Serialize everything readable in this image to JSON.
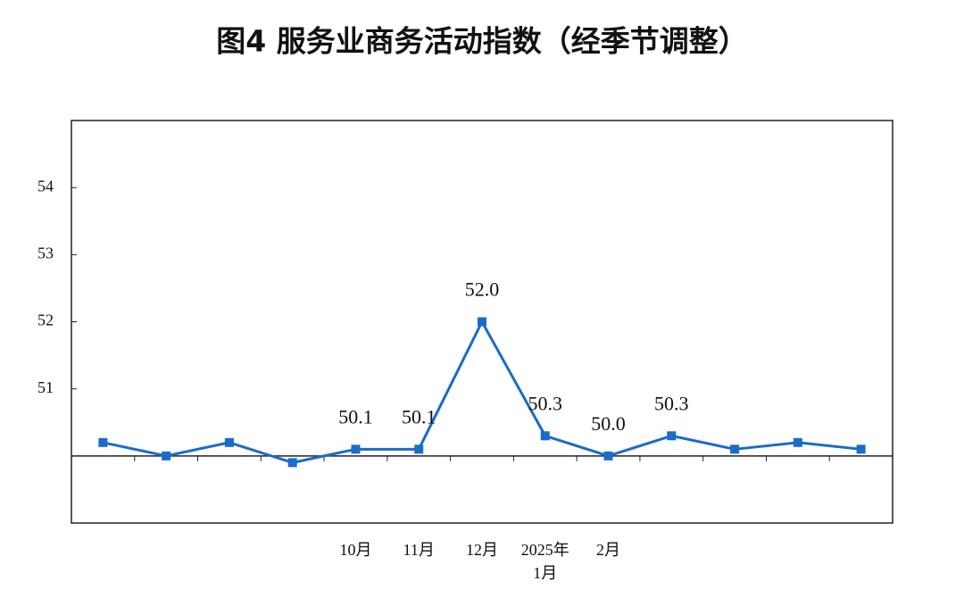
{
  "chart_data": {
    "type": "line",
    "title": "图4  服务业商务活动指数（经季节调整）",
    "categories": [
      null,
      null,
      null,
      null,
      "10月",
      "11月",
      "12月",
      "2025年\n1月",
      "2月",
      null,
      null,
      null,
      null
    ],
    "series": [
      {
        "name": null,
        "color": "#1a6cc8",
        "values": [
          50.2,
          50.0,
          50.2,
          49.9,
          50.1,
          50.1,
          52.0,
          50.3,
          50.0,
          50.3,
          50.1,
          50.2,
          50.1
        ],
        "value_labels": [
          null,
          null,
          null,
          null,
          "50.1",
          "50.1",
          "52.0",
          "50.3",
          "50.0",
          "50.3",
          null,
          null,
          null
        ]
      }
    ],
    "ylim": [
      49,
      55
    ],
    "yticks": [
      51,
      52,
      53,
      54
    ],
    "reference_line": 50,
    "grid": false
  }
}
